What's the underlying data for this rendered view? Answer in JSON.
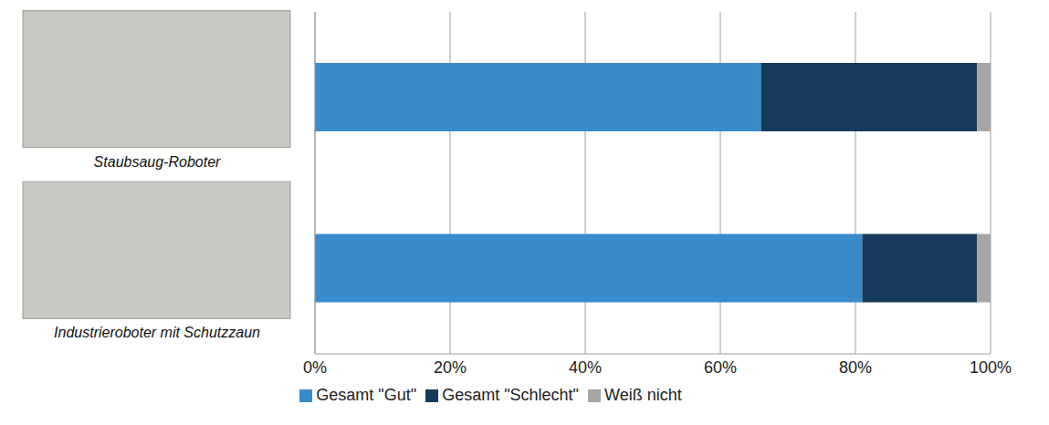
{
  "chart_data": {
    "type": "bar",
    "orientation": "horizontal",
    "stacked": true,
    "categories": [
      "Staubsaug-Roboter",
      "Industrieroboter mit Schutzzaun"
    ],
    "series": [
      {
        "name": "Gesamt \"Gut\"",
        "color": "#3a8bcc",
        "values": [
          66,
          81
        ]
      },
      {
        "name": "Gesamt \"Schlecht\"",
        "color": "#163a5a",
        "values": [
          32,
          17
        ]
      },
      {
        "name": "Weiß nicht",
        "color": "#a6a6a6",
        "values": [
          2,
          2
        ]
      }
    ],
    "xlim": [
      0,
      100
    ],
    "xticks": [
      {
        "value": 0,
        "label": "0%"
      },
      {
        "value": 20,
        "label": "20%"
      },
      {
        "value": 40,
        "label": "40%"
      },
      {
        "value": 60,
        "label": "60%"
      },
      {
        "value": 80,
        "label": "80%"
      },
      {
        "value": 100,
        "label": "100%"
      }
    ],
    "grid": true,
    "legend": "bottom"
  }
}
